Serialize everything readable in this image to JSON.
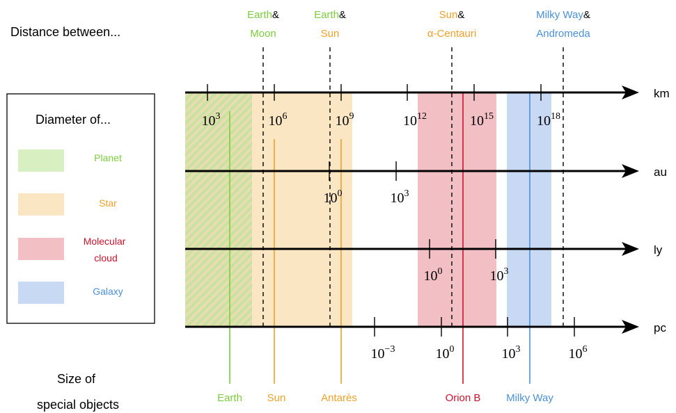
{
  "title": "Distance between...",
  "legend": {
    "title": "Diameter of...",
    "items": [
      {
        "label": "Planet",
        "color": "#7ccd3c",
        "fill": "#d8efc2"
      },
      {
        "label": "Star",
        "color": "#f0a028",
        "fill": "#fbe6c4"
      },
      {
        "label": "Molecular cloud",
        "color": "#d0102c",
        "fill": "#f2bfc4"
      },
      {
        "label": "Galaxy",
        "color": "#4a90d9",
        "fill": "#c8daf3"
      }
    ]
  },
  "distance_pairs": [
    {
      "a": "Earth",
      "b": "Moon",
      "a_color": "#7ccd3c",
      "b_color": "#7ccd3c"
    },
    {
      "a": "Earth",
      "b": "Sun",
      "a_color": "#7ccd3c",
      "b_color": "#f0a028"
    },
    {
      "a": "Sun",
      "b": "α-Centauri",
      "a_color": "#f0a028",
      "b_color": "#f0a028"
    },
    {
      "a": "Milky Way",
      "b": "Andromeda",
      "a_color": "#4a90d9",
      "b_color": "#4a90d9"
    }
  ],
  "axes": [
    {
      "unit": "km",
      "ticks": [
        "10^3",
        "10^6",
        "10^9",
        "10^12",
        "10^15",
        "10^18"
      ]
    },
    {
      "unit": "au",
      "ticks": [
        "10^0",
        "10^3"
      ]
    },
    {
      "unit": "ly",
      "ticks": [
        "10^0",
        "10^3"
      ]
    },
    {
      "unit": "pc",
      "ticks": [
        "10^-3",
        "10^0",
        "10^3",
        "10^6"
      ]
    }
  ],
  "bottom_title": "Size of special objects",
  "special_objects": [
    {
      "label": "Earth",
      "color": "#7ccd3c"
    },
    {
      "label": "Sun",
      "color": "#f0a028"
    },
    {
      "label": "Antarès",
      "color": "#f0a028"
    },
    {
      "label": "Orion B",
      "color": "#d0102c"
    },
    {
      "label": "Milky Way",
      "color": "#4a90d9"
    }
  ],
  "colors": {
    "axis": "#000000",
    "text": "#000000"
  }
}
